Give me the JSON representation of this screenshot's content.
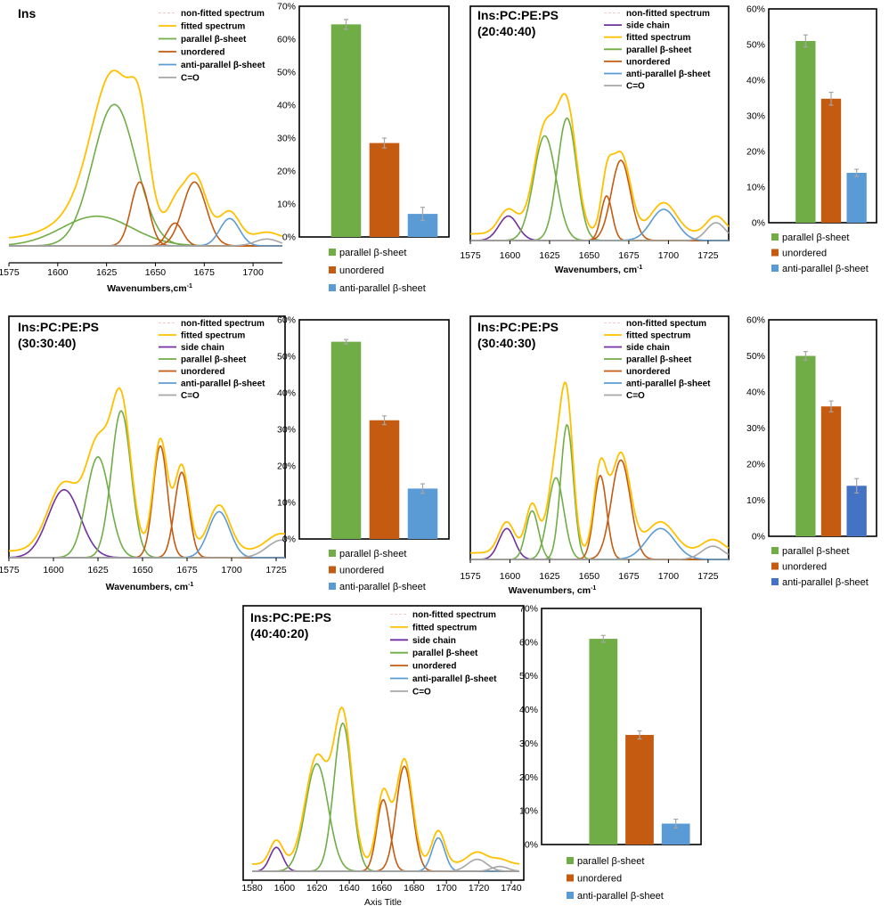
{
  "colors": {
    "nonfit": "#f6c8c8",
    "fitted": "#ffc000",
    "side": "#7030a0",
    "parallel": "#70ad47",
    "unordered": "#c55a11",
    "anti": "#5b9bd5",
    "anti_dark": "#4472c4",
    "co": "#a6a6a6",
    "err": "#a6a6a6"
  },
  "chart_data": [
    {
      "id": "p1",
      "type": "line",
      "title": "Ins",
      "title2": "",
      "xlabel": "Wavenumbers,cm",
      "xlabel_sup": "-1",
      "xlim": [
        1575,
        1715
      ],
      "ylim": [
        0,
        1.0
      ],
      "xticks": [
        1575,
        1600,
        1625,
        1650,
        1675,
        1700
      ],
      "legend": [
        {
          "key": "nonfit",
          "label": "non-fitted spectrum"
        },
        {
          "key": "fitted",
          "label": "fitted spectrum"
        },
        {
          "key": "parallel",
          "label": "parallel β-sheet"
        },
        {
          "key": "unordered",
          "label": "unordered"
        },
        {
          "key": "anti",
          "label": "anti-parallel β-sheet"
        },
        {
          "key": "co",
          "label": "C=O"
        }
      ],
      "components": [
        {
          "key": "parallel",
          "center": 1620,
          "height": 0.13,
          "width": 18
        },
        {
          "key": "parallel",
          "center": 1629,
          "height": 0.62,
          "width": 11
        },
        {
          "key": "unordered",
          "center": 1642,
          "height": 0.28,
          "width": 4.5
        },
        {
          "key": "unordered",
          "center": 1660,
          "height": 0.1,
          "width": 4
        },
        {
          "key": "unordered",
          "center": 1670,
          "height": 0.28,
          "width": 6
        },
        {
          "key": "anti",
          "center": 1688,
          "height": 0.12,
          "width": 5
        },
        {
          "key": "co",
          "center": 1707,
          "height": 0.03,
          "width": 6
        }
      ]
    },
    {
      "id": "p2",
      "type": "line",
      "title": "Ins:PC:PE:PS",
      "title2": "(20:40:40)",
      "xlabel": "Wavenumbers, cm",
      "xlabel_sup": "-1",
      "xlim": [
        1575,
        1738
      ],
      "ylim": [
        0,
        1.0
      ],
      "xticks": [
        1575,
        1600,
        1625,
        1650,
        1675,
        1700,
        1725
      ],
      "legend": [
        {
          "key": "nonfit",
          "label": "non-fitted spectrum"
        },
        {
          "key": "side",
          "label": "side chain"
        },
        {
          "key": "fitted",
          "label": "fitted spectrum"
        },
        {
          "key": "parallel",
          "label": "parallel β-sheet"
        },
        {
          "key": "unordered",
          "label": "unordered"
        },
        {
          "key": "anti",
          "label": "anti-parallel β-sheet"
        },
        {
          "key": "co",
          "label": "C=O"
        }
      ],
      "components": [
        {
          "key": "side",
          "center": 1599,
          "height": 0.11,
          "width": 6
        },
        {
          "key": "parallel",
          "center": 1622,
          "height": 0.47,
          "width": 7
        },
        {
          "key": "parallel",
          "center": 1636,
          "height": 0.55,
          "width": 6
        },
        {
          "key": "unordered",
          "center": 1661,
          "height": 0.2,
          "width": 3.5
        },
        {
          "key": "unordered",
          "center": 1670,
          "height": 0.36,
          "width": 6
        },
        {
          "key": "anti",
          "center": 1697,
          "height": 0.14,
          "width": 8
        },
        {
          "key": "co",
          "center": 1730,
          "height": 0.08,
          "width": 6
        }
      ]
    },
    {
      "id": "p3",
      "type": "line",
      "title": "Ins:PC:PE:PS",
      "title2": "(30:30:40)",
      "xlabel": "Wavenumbers, cm",
      "xlabel_sup": "-1",
      "xlim": [
        1575,
        1730
      ],
      "ylim": [
        0,
        1.0
      ],
      "xticks": [
        1575,
        1600,
        1625,
        1650,
        1675,
        1700,
        1725
      ],
      "legend": [
        {
          "key": "nonfit",
          "label": "non-fitted spectrum"
        },
        {
          "key": "fitted",
          "label": "fitted spectrum"
        },
        {
          "key": "side",
          "label": "side chain"
        },
        {
          "key": "parallel",
          "label": "parallel β-sheet"
        },
        {
          "key": "unordered",
          "label": "unordered"
        },
        {
          "key": "anti",
          "label": "anti-parallel β-sheet"
        },
        {
          "key": "co",
          "label": "C=O"
        }
      ],
      "components": [
        {
          "key": "side",
          "center": 1606,
          "height": 0.31,
          "width": 9
        },
        {
          "key": "parallel",
          "center": 1625,
          "height": 0.46,
          "width": 6.5
        },
        {
          "key": "parallel",
          "center": 1638,
          "height": 0.67,
          "width": 5.5
        },
        {
          "key": "unordered",
          "center": 1660,
          "height": 0.51,
          "width": 4
        },
        {
          "key": "unordered",
          "center": 1672,
          "height": 0.39,
          "width": 4
        },
        {
          "key": "anti",
          "center": 1693,
          "height": 0.21,
          "width": 6
        },
        {
          "key": "co",
          "center": 1728,
          "height": 0.08,
          "width": 8
        }
      ]
    },
    {
      "id": "p4",
      "type": "line",
      "title": "Ins:PC:PE:PS",
      "title2": "(30:40:30)",
      "xlabel": "Wavenumbers, cm",
      "xlabel_sup": "-1",
      "xlim": [
        1575,
        1738
      ],
      "ylim": [
        0,
        1.0
      ],
      "xticks": [
        1575,
        1600,
        1625,
        1650,
        1675,
        1700,
        1725
      ],
      "legend": [
        {
          "key": "nonfit",
          "label": "non-fitted spectum"
        },
        {
          "key": "fitted",
          "label": "fitted spectrum"
        },
        {
          "key": "side",
          "label": "side chain"
        },
        {
          "key": "parallel",
          "label": "parallel β-sheet"
        },
        {
          "key": "unordered",
          "label": "unordered"
        },
        {
          "key": "anti",
          "label": "anti-parallel β-sheet"
        },
        {
          "key": "co",
          "label": "C=O"
        }
      ],
      "components": [
        {
          "key": "side",
          "center": 1598,
          "height": 0.14,
          "width": 5
        },
        {
          "key": "parallel",
          "center": 1614,
          "height": 0.22,
          "width": 4
        },
        {
          "key": "parallel",
          "center": 1629,
          "height": 0.37,
          "width": 5
        },
        {
          "key": "parallel",
          "center": 1636,
          "height": 0.61,
          "width": 4
        },
        {
          "key": "unordered",
          "center": 1657,
          "height": 0.38,
          "width": 4
        },
        {
          "key": "unordered",
          "center": 1670,
          "height": 0.45,
          "width": 6
        },
        {
          "key": "anti",
          "center": 1695,
          "height": 0.14,
          "width": 9
        },
        {
          "key": "co",
          "center": 1728,
          "height": 0.06,
          "width": 7
        }
      ]
    },
    {
      "id": "p5",
      "type": "line",
      "title": "Ins:PC:PE:PS",
      "title2": "(40:40:20)",
      "xlabel": "Axis Title",
      "xlabel_sup": "",
      "xlim": [
        1580,
        1745
      ],
      "ylim": [
        0,
        1.0
      ],
      "xticks": [
        1580,
        1600,
        1620,
        1640,
        1660,
        1680,
        1700,
        1720,
        1740
      ],
      "legend": [
        {
          "key": "nonfit",
          "label": "non-fitted spectrum"
        },
        {
          "key": "fitted",
          "label": "fitted spectrum"
        },
        {
          "key": "side",
          "label": "side chain"
        },
        {
          "key": "parallel",
          "label": "parallel β-sheet"
        },
        {
          "key": "unordered",
          "label": "unordered"
        },
        {
          "key": "anti",
          "label": "anti-parallel β-sheet"
        },
        {
          "key": "co",
          "label": "C=O"
        }
      ],
      "components": [
        {
          "key": "side",
          "center": 1595,
          "height": 0.1,
          "width": 4
        },
        {
          "key": "parallel",
          "center": 1620,
          "height": 0.45,
          "width": 7
        },
        {
          "key": "parallel",
          "center": 1636,
          "height": 0.62,
          "width": 5.5
        },
        {
          "key": "unordered",
          "center": 1661,
          "height": 0.3,
          "width": 4
        },
        {
          "key": "unordered",
          "center": 1674,
          "height": 0.44,
          "width": 5
        },
        {
          "key": "anti",
          "center": 1695,
          "height": 0.14,
          "width": 4
        },
        {
          "key": "co",
          "center": 1719,
          "height": 0.05,
          "width": 6
        },
        {
          "key": "co",
          "center": 1733,
          "height": 0.02,
          "width": 5
        }
      ]
    },
    {
      "id": "b1",
      "type": "bar",
      "ylim": [
        0,
        70
      ],
      "yticks": [
        0,
        10,
        20,
        30,
        40,
        50,
        60,
        70
      ],
      "categories": [
        "parallel β-sheet",
        "unordered",
        "anti-parallel β-sheet"
      ],
      "values": [
        64.5,
        28.5,
        7.0
      ],
      "errors": [
        1.5,
        1.5,
        2.0
      ],
      "colors": [
        "parallel",
        "unordered",
        "anti"
      ]
    },
    {
      "id": "b2",
      "type": "bar",
      "ylim": [
        0,
        60
      ],
      "yticks": [
        0,
        10,
        20,
        30,
        40,
        50,
        60
      ],
      "categories": [
        "parallel β-sheet",
        "unordered",
        "anti-parallel β-sheet"
      ],
      "values": [
        51.0,
        34.8,
        14.0
      ],
      "errors": [
        1.7,
        1.8,
        1.0
      ],
      "colors": [
        "parallel",
        "unordered",
        "anti"
      ]
    },
    {
      "id": "b3",
      "type": "bar",
      "ylim": [
        0,
        60
      ],
      "yticks": [
        0,
        10,
        20,
        30,
        40,
        50,
        60
      ],
      "categories": [
        "parallel β-sheet",
        "unordered",
        "anti-parallel β-sheet"
      ],
      "values": [
        54.0,
        32.5,
        13.8
      ],
      "errors": [
        0.6,
        1.2,
        1.3
      ],
      "colors": [
        "parallel",
        "unordered",
        "anti"
      ]
    },
    {
      "id": "b4",
      "type": "bar",
      "ylim": [
        0,
        60
      ],
      "yticks": [
        0,
        10,
        20,
        30,
        40,
        50,
        60
      ],
      "categories": [
        "parallel β-sheet",
        "unordered",
        "anti-parallel β-sheet"
      ],
      "values": [
        50.0,
        36.0,
        14.0
      ],
      "errors": [
        1.2,
        1.5,
        2.0
      ],
      "colors": [
        "parallel",
        "unordered",
        "anti_dark"
      ]
    },
    {
      "id": "b5",
      "type": "bar",
      "ylim": [
        0,
        70
      ],
      "yticks": [
        0,
        10,
        20,
        30,
        40,
        50,
        60,
        70
      ],
      "categories": [
        "parallel β-sheet",
        "unordered",
        "anti-parallel β-sheet"
      ],
      "values": [
        61.0,
        32.5,
        6.2
      ],
      "errors": [
        1.0,
        1.2,
        1.3
      ],
      "colors": [
        "parallel",
        "unordered",
        "anti"
      ]
    }
  ]
}
